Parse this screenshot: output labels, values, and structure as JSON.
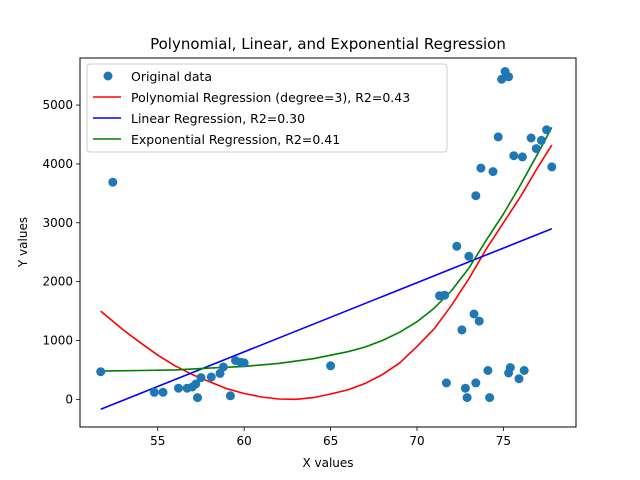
{
  "chart_data": {
    "type": "scatter",
    "title": "Polynomial, Linear, and Exponential Regression",
    "xlabel": "X values",
    "ylabel": "Y values",
    "xlim": [
      50.5,
      79.2
    ],
    "ylim": [
      -470,
      5800
    ],
    "x_ticks": [
      55,
      60,
      65,
      70,
      75
    ],
    "y_ticks": [
      0,
      1000,
      2000,
      3000,
      4000,
      5000
    ],
    "grid": false,
    "legend_position": "top-left",
    "colors": {
      "points": "#1f77b4",
      "polynomial": "#ff0000",
      "linear": "#0000ff",
      "exponential": "#008000"
    },
    "scatter": {
      "name": "Original data",
      "points": [
        [
          51.7,
          470
        ],
        [
          52.4,
          3690
        ],
        [
          54.8,
          120
        ],
        [
          55.3,
          120
        ],
        [
          56.2,
          190
        ],
        [
          56.7,
          190
        ],
        [
          57.0,
          210
        ],
        [
          57.2,
          260
        ],
        [
          57.3,
          30
        ],
        [
          57.5,
          370
        ],
        [
          58.1,
          380
        ],
        [
          58.6,
          440
        ],
        [
          58.8,
          550
        ],
        [
          59.2,
          60
        ],
        [
          59.5,
          660
        ],
        [
          59.8,
          630
        ],
        [
          60.0,
          620
        ],
        [
          65.0,
          570
        ],
        [
          71.3,
          1760
        ],
        [
          71.6,
          1770
        ],
        [
          71.7,
          280
        ],
        [
          72.3,
          2600
        ],
        [
          72.6,
          1180
        ],
        [
          72.8,
          190
        ],
        [
          72.9,
          30
        ],
        [
          73.0,
          2430
        ],
        [
          73.3,
          1450
        ],
        [
          73.4,
          3460
        ],
        [
          73.4,
          280
        ],
        [
          73.6,
          1330
        ],
        [
          73.7,
          3930
        ],
        [
          74.1,
          490
        ],
        [
          74.2,
          30
        ],
        [
          74.4,
          3870
        ],
        [
          74.7,
          4460
        ],
        [
          74.9,
          5440
        ],
        [
          75.1,
          5570
        ],
        [
          75.3,
          5480
        ],
        [
          75.3,
          450
        ],
        [
          75.4,
          540
        ],
        [
          75.6,
          4140
        ],
        [
          75.9,
          350
        ],
        [
          76.1,
          4120
        ],
        [
          76.2,
          490
        ],
        [
          76.6,
          4440
        ],
        [
          76.9,
          4260
        ],
        [
          77.2,
          4400
        ],
        [
          77.5,
          4580
        ],
        [
          77.8,
          3950
        ]
      ]
    },
    "series": [
      {
        "name": "Polynomial Regression (degree=3), R2=0.43",
        "x": [
          51.7,
          53.0,
          54.0,
          55.0,
          56.0,
          57.0,
          58.0,
          59.0,
          60.0,
          61.0,
          62.0,
          63.0,
          64.0,
          65.0,
          66.0,
          67.0,
          68.0,
          69.0,
          70.0,
          71.0,
          72.0,
          73.0,
          74.0,
          75.0,
          76.0,
          77.0,
          77.8
        ],
        "y": [
          1500,
          1180,
          960,
          750,
          570,
          420,
          300,
          180,
          100,
          40,
          5,
          0,
          30,
          90,
          160,
          270,
          420,
          620,
          900,
          1200,
          1600,
          2050,
          2550,
          3000,
          3450,
          3950,
          4320
        ]
      },
      {
        "name": "Linear Regression, R2=0.30",
        "x": [
          51.7,
          77.8
        ],
        "y": [
          -170,
          2900
        ]
      },
      {
        "name": "Exponential Regression, R2=0.41",
        "x": [
          51.7,
          54.0,
          56.0,
          58.0,
          60.0,
          62.0,
          64.0,
          66.0,
          67.0,
          68.0,
          69.0,
          70.0,
          71.0,
          72.0,
          73.0,
          74.0,
          75.0,
          76.0,
          77.0,
          77.8
        ],
        "y": [
          480,
          490,
          500,
          530,
          560,
          610,
          690,
          810,
          890,
          1000,
          1140,
          1320,
          1550,
          1850,
          2230,
          2700,
          3150,
          3650,
          4180,
          4620
        ]
      }
    ]
  }
}
